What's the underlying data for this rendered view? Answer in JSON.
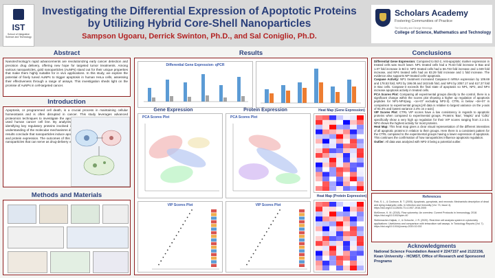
{
  "header": {
    "title": "Investigating the Differential Expression of Apoptotic Proteins by Utilizing Hybrid Core-Shell Nanoparticles",
    "authors": "Sampson Ugoaru, Derrick Swinton, Ph.D., and Sal Coniglio, Ph.D.",
    "left_logo": {
      "name": "IST",
      "sub": "School of Integrative Science and Technology"
    },
    "right_logo": {
      "name": "Scholars Academy",
      "tagline": "Fostering Communities of Practice",
      "small": "The Dorothy and George Hennings",
      "dept": "College of Science, Mathematics and Technology"
    }
  },
  "abstract": {
    "heading": "Abstract",
    "text": "Nanotechnology's rapid advancements are revolutionizing early cancer detection and precision drug delivery, offering new hope for targeted tumor treatments. Among various nanoparticles, gold nanoparticles (AuNPs) stand out for their unique properties that make them highly suitable for in vivo applications. In this study, we explore the potential of finely tuned AuNPs to trigger apoptosis in human HeLa cells, assessing their effectiveness through a range of assays. This investigation sheds light on the promise of AuNPs in cell-targeted cancer."
  },
  "introduction": {
    "heading": "Introduction",
    "text": "Apoptosis, or programmed cell death, is a crucial process in maintaining cellular homeostasis and is often disrupted in cancer. This study leverages advanced proteomics techniques to investigate the apoptotic pathways in HeLa cells, a widely used human cancer cell line. By analyzing the protein expression profiles and identifying key regulatory proteins involved in apoptosis, we aim to gain a deeper understanding of the molecular mechanisms driving cancer cell survival and death. Our results conclude that nanoparticles induce apoptosis in HeLa cells and differential gene and protein expression. The outcomes of this research can contribute to the design of nanoparticles that can serve as drug-delivery vehicles."
  },
  "methods": {
    "heading": "Methods and Materials"
  },
  "results": {
    "heading": "Results",
    "qpcr_title": "Differential Gene Expression- qPCR",
    "gene_expression": "Gene Expression",
    "protein_expression": "Protein  Expression",
    "pca_title": "PCA Scores Plot",
    "vip_title": "VIP Scores Plot",
    "heatmap_gene": "Heat Map (Gene Expression)",
    "heatmap_protein": "Heat Map (Protein Expression)"
  },
  "conclusions": {
    "heading": "Conclusions",
    "paragraphs": [
      {
        "label": "Differential Gene Expression:",
        "text": " Compared to Bcl-2, Anti-apoptotic marker expression in treated cells was much lower. NP1 treated cells had a 76.63 fold increase in Bax and 1.07 fold increase in Bcl-2. NP2 treated cells had a 56.733 fold increase and 1.049 fold increase, and NP4 treated cells had an 83.29 fold increase and 1 fold increase. The evidence also supports NP-treated cells' apoptosis."
      },
      {
        "label": "Caspase Activity:",
        "text": " NP1 treatment increased Caspase-3 mRNA expression by 109.69 and 178.53 fold, NP2 by 196.08 and 163.545 fold, and NP4 by 2057.17 and 617.37 fold in Bax cells. Caspase-3 exceeds the final state of apoptosis so NP1, NP2, and NP4 increase apoptosis activity in treated cells."
      },
      {
        "label": "PCA Scores Plot:",
        "text": " Comparing all experimental groups directly to the control, there is a significant change within the scores plot showing a higher up regulation of apoptosis peptides for NP1-NP4(avg. ~1e+07 excluding NP2-3). CTRL is below ~2e+07 in comparison to experimental groups.[All data is relative to largest variance on the y-axis of 93.3% and lowest variance 2.4% on x-axis]"
      },
      {
        "label": "VIP Scores Plot:",
        "text": " CTRL VIP scores have a low consistency in regards to apoptotic proteins when compared to experimental groups. Proteins 'Bax', 'Mapk1' and 'Cdk1' specifically show a very high up regulation for their VIP scores ranging from 2.1-2.5. NP4 shows the highest activity for most proteins."
      },
      {
        "label": "Heat Map:",
        "text": " This heat map gives a clear visual representation of the different intensities of all apoptotic proteins in relation to their groups. Here there is a consistent pattern for the CTRL compared to the experimental groups having a lower expression of apoptosis. This continues the confirmation of how nanoparticles influence apoptosis regulation."
      },
      {
        "label": "Outlier:",
        "text": " All data was analyzed with NP2-3 being a potential outlier."
      }
    ]
  },
  "references": {
    "heading": "References",
    "items": [
      "Fink, S. L., & Cookson, B. T. (2005). Apoptosis, pyroptosis, and necrosis: Mechanistic description of dead and dying eukaryotic cells. In Infection and Immunity (Vol. 73, Issue 4). https://doi.org/10.1128/IAI.73.4.1907-1916.2005",
      "McKinnon, K. M. (2018). Flow cytometry: An overview. Current Protocols in Immunology, 2018. https://doi.org/10.1002/cpim.40",
      "Stellemacher-Hajkak, J., & Ochoche, J. R. (2020). Real-time cell analysis system in cytotoxicity applications: Usefulness and comparison with tetrazolium salt assays. In Toxicology Reports (Vol. 7). https://doi.org/10.1016/j.toxrep.2020.02.002"
    ]
  },
  "acknowledgments": {
    "heading": "Acknowledgments",
    "text": "National Science Foundation Award # 2247157 and 2122158, Kean University - HCMST, Office of Research and Sponsored Programs"
  },
  "colors": {
    "title": "#2a3f7a",
    "authors": "#b22222",
    "border": "#8b1a1a"
  }
}
